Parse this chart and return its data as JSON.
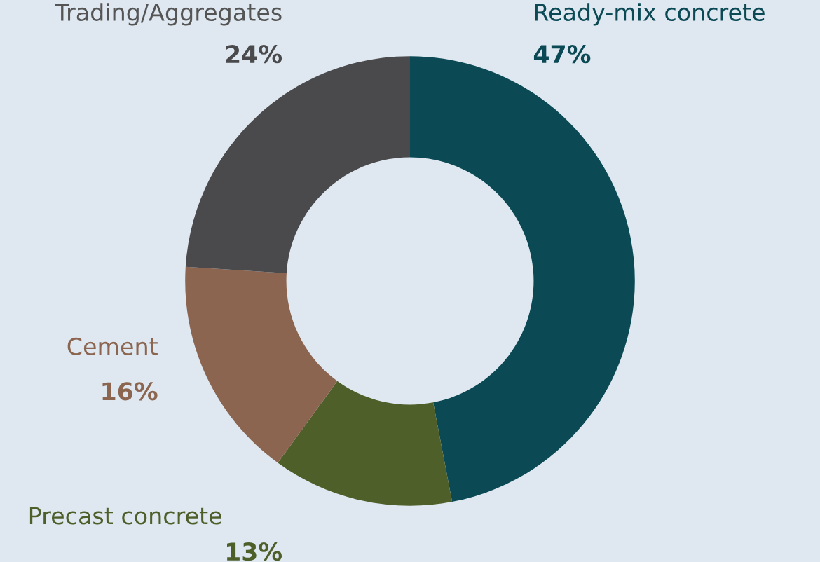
{
  "chart_data": {
    "type": "donut",
    "categories": [
      "Ready-mix concrete",
      "Precast concrete",
      "Cement",
      "Trading/Aggregates"
    ],
    "values": [
      47,
      13,
      16,
      24
    ],
    "colors": [
      "#0b4a55",
      "#4f5f2a",
      "#8b6550",
      "#4a4a4c"
    ],
    "value_labels": [
      "47%",
      "13%",
      "16%",
      "24%"
    ],
    "legend": false
  }
}
